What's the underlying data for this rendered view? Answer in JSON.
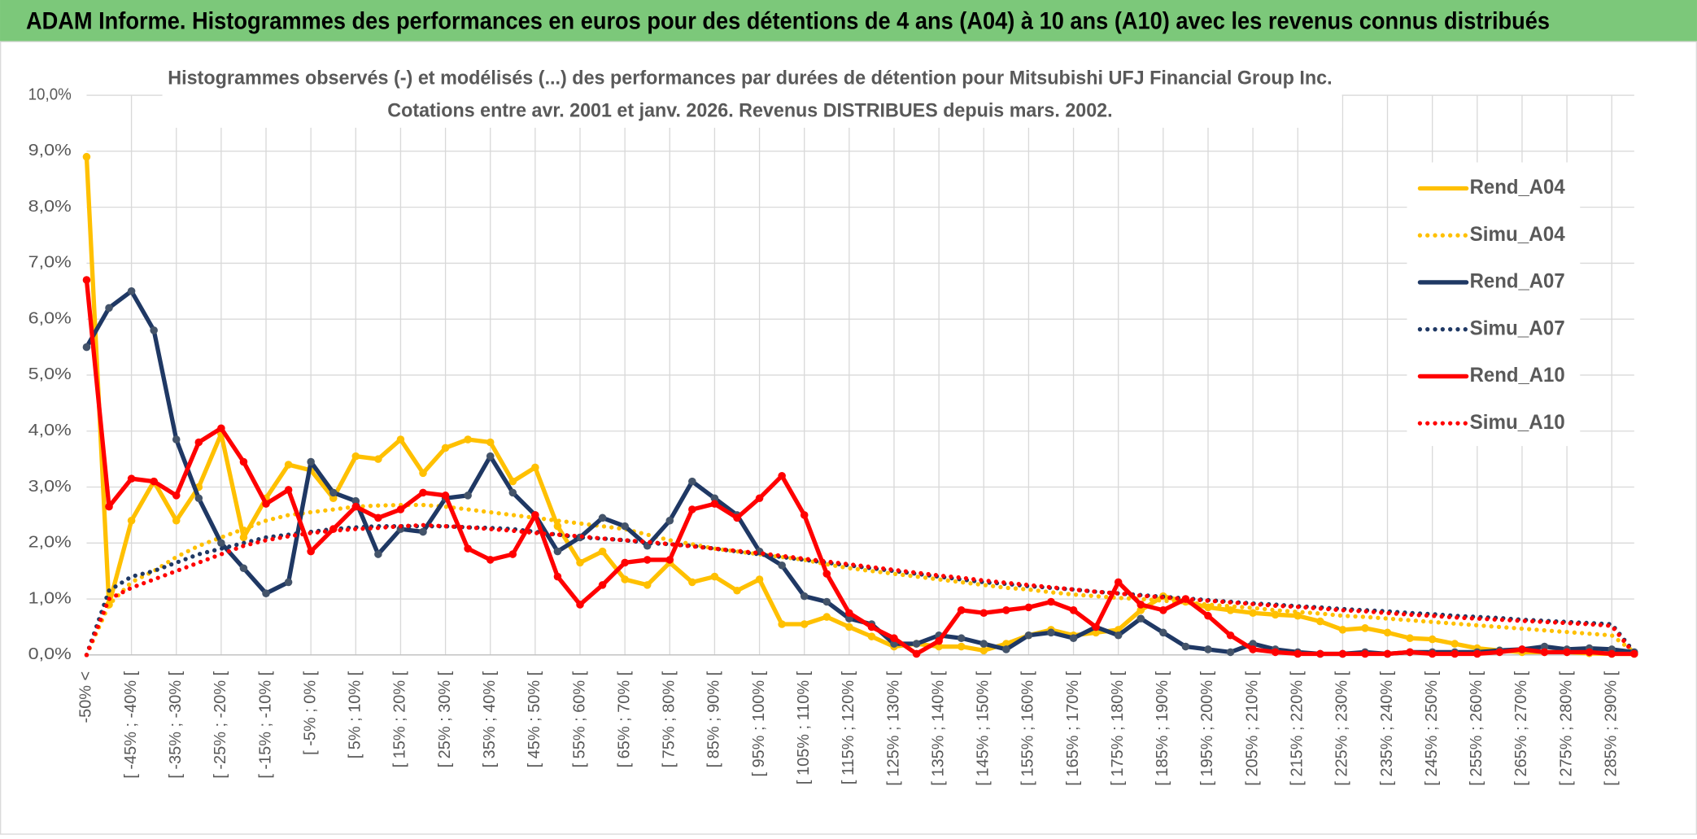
{
  "header": {
    "title": "ADAM Informe. Histogrammes des performances en euros pour des détentions de 4 ans (A04) à 10 ans (A10) avec les revenus connus distribués"
  },
  "chart_data": {
    "type": "line",
    "title": "Histogrammes observés (-) et modélisés (...) des performances par durées de détention pour Mitsubishi UFJ Financial Group Inc.",
    "subtitle": "Cotations entre avr. 2001 et janv. 2026. Revenus DISTRIBUES depuis mars. 2002.",
    "categories": [
      "-50% <",
      null,
      "[ -45% ; -40% [",
      null,
      "[ -35% ; -30% [",
      null,
      "[ -25% ; -20% [",
      null,
      "[ -15% ; -10% [",
      null,
      "[ -5% ; 0% [",
      null,
      "[ 5% ; 10% [",
      null,
      "[ 15% ; 20% [",
      null,
      "[ 25% ; 30% [",
      null,
      "[ 35% ; 40% [",
      null,
      "[ 45% ; 50% [",
      null,
      "[ 55% ; 60% [",
      null,
      "[ 65% ; 70% [",
      null,
      "[ 75% ; 80% [",
      null,
      "[ 85% ; 90% [",
      null,
      "[ 95% ; 100% [",
      null,
      "[ 105% ; 110% [",
      null,
      "[ 115% ; 120% [",
      null,
      "[ 125% ; 130% [",
      null,
      "[ 135% ; 140% [",
      null,
      "[ 145% ; 150% [",
      null,
      "[ 155% ; 160% [",
      null,
      "[ 165% ; 170% [",
      null,
      "[ 175% ; 180% [",
      null,
      "[ 185% ; 190% [",
      null,
      "[ 195% ; 200% [",
      null,
      "[ 205% ; 210% [",
      null,
      "[ 215% ; 220% [",
      null,
      "[ 225% ; 230% [",
      null,
      "[ 235% ; 240% [",
      null,
      "[ 245% ; 250% [",
      null,
      "[ 255% ; 260% [",
      null,
      "[ 265% ; 270% [",
      null,
      "[ 275% ; 280% [",
      null,
      "[ 285% ; 290% [",
      null
    ],
    "ylim": [
      0,
      10
    ],
    "yticks": [
      {
        "value": 0,
        "label": "0,0%"
      },
      {
        "value": 1,
        "label": "1,0%"
      },
      {
        "value": 2,
        "label": "2,0%"
      },
      {
        "value": 3,
        "label": "3,0%"
      },
      {
        "value": 4,
        "label": "4,0%"
      },
      {
        "value": 5,
        "label": "5,0%"
      },
      {
        "value": 6,
        "label": "6,0%"
      },
      {
        "value": 7,
        "label": "7,0%"
      },
      {
        "value": 8,
        "label": "8,0%"
      },
      {
        "value": 9,
        "label": "9,0%"
      },
      {
        "value": 10,
        "label": "10,0%"
      }
    ],
    "grid": true,
    "legend": "right",
    "series": [
      {
        "name": "Rend_A04",
        "color": "#ffc000",
        "style": "solid",
        "values": [
          8.9,
          0.9,
          2.4,
          3.1,
          2.4,
          3.0,
          3.95,
          2.1,
          2.8,
          3.4,
          3.3,
          2.8,
          3.55,
          3.5,
          3.85,
          3.25,
          3.7,
          3.85,
          3.8,
          3.1,
          3.35,
          2.3,
          1.65,
          1.85,
          1.35,
          1.25,
          1.65,
          1.3,
          1.4,
          1.15,
          1.35,
          0.55,
          0.55,
          0.68,
          0.5,
          0.33,
          0.15,
          0.2,
          0.15,
          0.15,
          0.08,
          0.2,
          0.35,
          0.45,
          0.35,
          0.4,
          0.45,
          0.8,
          1.05,
          0.95,
          0.85,
          0.8,
          0.75,
          0.72,
          0.7,
          0.6,
          0.45,
          0.48,
          0.4,
          0.3,
          0.28,
          0.2,
          0.12,
          0.08,
          0.05,
          0.05,
          0.05,
          0.03,
          0.02,
          0.02
        ]
      },
      {
        "name": "Simu_A04",
        "color": "#ffc000",
        "style": "dotted",
        "values": [
          0,
          0.9,
          1.3,
          1.5,
          1.75,
          1.95,
          2.1,
          2.25,
          2.4,
          2.5,
          2.55,
          2.6,
          2.65,
          2.67,
          2.68,
          2.68,
          2.65,
          2.6,
          2.55,
          2.5,
          2.45,
          2.4,
          2.35,
          2.3,
          2.25,
          2.15,
          2.05,
          1.98,
          1.9,
          1.85,
          1.8,
          1.75,
          1.7,
          1.62,
          1.55,
          1.5,
          1.45,
          1.4,
          1.35,
          1.3,
          1.25,
          1.2,
          1.17,
          1.12,
          1.08,
          1.05,
          1.02,
          1.0,
          0.97,
          0.94,
          0.9,
          0.87,
          0.84,
          0.8,
          0.77,
          0.74,
          0.7,
          0.68,
          0.65,
          0.62,
          0.59,
          0.56,
          0.53,
          0.5,
          0.47,
          0.44,
          0.41,
          0.38,
          0.35,
          0.05
        ]
      },
      {
        "name": "Rend_A07",
        "color": "#1f3864",
        "style": "solid",
        "values": [
          5.5,
          6.2,
          6.5,
          5.8,
          3.85,
          2.8,
          2.0,
          1.55,
          1.1,
          1.3,
          3.45,
          2.9,
          2.75,
          1.8,
          2.25,
          2.2,
          2.8,
          2.85,
          3.55,
          2.9,
          2.5,
          1.85,
          2.1,
          2.45,
          2.3,
          1.95,
          2.4,
          3.1,
          2.8,
          2.5,
          1.85,
          1.6,
          1.05,
          0.95,
          0.65,
          0.55,
          0.2,
          0.2,
          0.35,
          0.3,
          0.2,
          0.1,
          0.35,
          0.4,
          0.3,
          0.5,
          0.35,
          0.65,
          0.4,
          0.15,
          0.1,
          0.05,
          0.2,
          0.1,
          0.05,
          0.02,
          0.02,
          0.05,
          0.02,
          0.05,
          0.05,
          0.05,
          0.05,
          0.08,
          0.1,
          0.15,
          0.1,
          0.12,
          0.1,
          0.05
        ]
      },
      {
        "name": "Simu_A07",
        "color": "#1f3864",
        "style": "dotted",
        "values": [
          0,
          1.15,
          1.4,
          1.5,
          1.65,
          1.8,
          1.9,
          2.0,
          2.1,
          2.15,
          2.2,
          2.25,
          2.28,
          2.3,
          2.3,
          2.3,
          2.3,
          2.28,
          2.27,
          2.25,
          2.2,
          2.15,
          2.1,
          2.08,
          2.05,
          2.0,
          1.98,
          1.95,
          1.9,
          1.85,
          1.8,
          1.75,
          1.7,
          1.65,
          1.6,
          1.55,
          1.5,
          1.45,
          1.4,
          1.35,
          1.3,
          1.27,
          1.23,
          1.2,
          1.17,
          1.13,
          1.1,
          1.07,
          1.04,
          1.01,
          0.98,
          0.95,
          0.92,
          0.9,
          0.87,
          0.85,
          0.82,
          0.8,
          0.78,
          0.75,
          0.73,
          0.7,
          0.68,
          0.66,
          0.63,
          0.61,
          0.59,
          0.57,
          0.55,
          0.05
        ]
      },
      {
        "name": "Rend_A10",
        "color": "#ff0000",
        "style": "solid",
        "values": [
          6.7,
          2.65,
          3.15,
          3.1,
          2.85,
          3.8,
          4.05,
          3.45,
          2.7,
          2.95,
          1.85,
          2.25,
          2.65,
          2.45,
          2.6,
          2.9,
          2.85,
          1.9,
          1.7,
          1.8,
          2.5,
          1.4,
          0.9,
          1.25,
          1.65,
          1.7,
          1.7,
          2.6,
          2.7,
          2.45,
          2.8,
          3.2,
          2.5,
          1.45,
          0.75,
          0.5,
          0.3,
          0.02,
          0.25,
          0.8,
          0.75,
          0.8,
          0.85,
          0.95,
          0.8,
          0.5,
          1.3,
          0.9,
          0.8,
          1.0,
          0.7,
          0.35,
          0.1,
          0.05,
          0.02,
          0.02,
          0.02,
          0.02,
          0.02,
          0.05,
          0.02,
          0.02,
          0.02,
          0.05,
          0.1,
          0.05,
          0.05,
          0.05,
          0.02,
          0.02
        ]
      },
      {
        "name": "Simu_A10",
        "color": "#ff0000",
        "style": "dotted",
        "values": [
          0,
          1.0,
          1.2,
          1.35,
          1.5,
          1.65,
          1.8,
          1.95,
          2.05,
          2.12,
          2.18,
          2.22,
          2.25,
          2.27,
          2.3,
          2.32,
          2.3,
          2.28,
          2.25,
          2.22,
          2.18,
          2.15,
          2.12,
          2.08,
          2.05,
          2.02,
          1.98,
          1.94,
          1.9,
          1.86,
          1.82,
          1.77,
          1.72,
          1.67,
          1.62,
          1.57,
          1.52,
          1.47,
          1.42,
          1.38,
          1.33,
          1.29,
          1.25,
          1.21,
          1.17,
          1.13,
          1.1,
          1.06,
          1.03,
          1.0,
          0.97,
          0.94,
          0.91,
          0.88,
          0.86,
          0.83,
          0.8,
          0.78,
          0.75,
          0.72,
          0.7,
          0.67,
          0.65,
          0.63,
          0.61,
          0.59,
          0.57,
          0.55,
          0.52,
          0.02
        ]
      }
    ]
  }
}
